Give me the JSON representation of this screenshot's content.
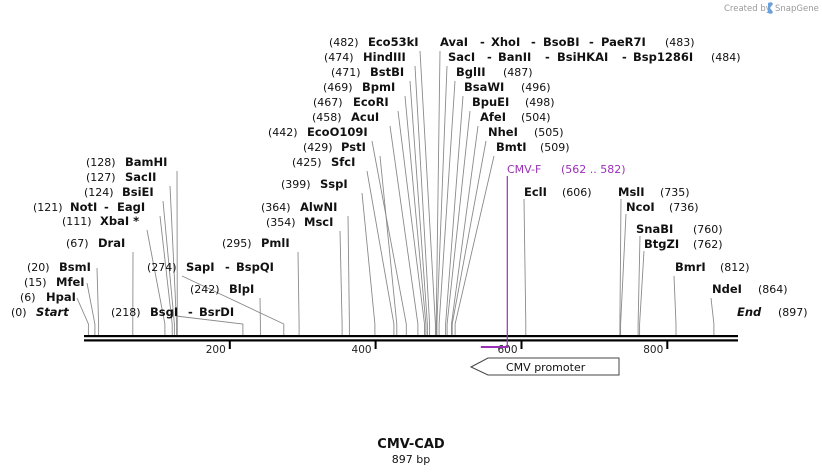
{
  "brand": {
    "created_by": "Created by",
    "app_name": "SnapGene",
    "logo_icon": "snapgene-logo-icon"
  },
  "map": {
    "name": "CMV-CAD",
    "length_label": "897 bp",
    "length_bp": 897,
    "tick_labels": [
      "200",
      "400",
      "600",
      "800"
    ],
    "tick_values": [
      200,
      400,
      600,
      800
    ],
    "backbone_color": "#000000",
    "cut_line_color": "#8a8a8a"
  },
  "endpoints": [
    {
      "id": "start",
      "name": "Start",
      "pos_label": "(0)",
      "pos": 0
    },
    {
      "id": "end",
      "name": "End",
      "pos_label": "(897)",
      "pos": 897
    }
  ],
  "sites": [
    {
      "id": "hpai",
      "names": [
        "HpaI"
      ],
      "pos_label": "(6)",
      "pos": 6
    },
    {
      "id": "mfei",
      "names": [
        "MfeI"
      ],
      "pos_label": "(15)",
      "pos": 15
    },
    {
      "id": "bsmi",
      "names": [
        "BsmI"
      ],
      "pos_label": "(20)",
      "pos": 20
    },
    {
      "id": "drai",
      "names": [
        "DraI"
      ],
      "pos_label": "(67)",
      "pos": 67
    },
    {
      "id": "xbai",
      "names": [
        "XbaI *"
      ],
      "pos_label": "(111)",
      "pos": 111
    },
    {
      "id": "noti-eagi",
      "names": [
        "NotI",
        "EagI"
      ],
      "pos_label": "(121)",
      "pos": 121
    },
    {
      "id": "bsiei",
      "names": [
        "BsiEI"
      ],
      "pos_label": "(124)",
      "pos": 124
    },
    {
      "id": "sacii",
      "names": [
        "SacII"
      ],
      "pos_label": "(127)",
      "pos": 127
    },
    {
      "id": "bamhi",
      "names": [
        "BamHI"
      ],
      "pos_label": "(128)",
      "pos": 128
    },
    {
      "id": "bsgi-bsrdi",
      "names": [
        "BsgI",
        "BsrDI"
      ],
      "pos_label": "(218)",
      "pos": 218
    },
    {
      "id": "sapi-bspqi",
      "names": [
        "SapI",
        "BspQI"
      ],
      "pos_label": "(274)",
      "pos": 274
    },
    {
      "id": "blpi",
      "names": [
        "BlpI"
      ],
      "pos_label": "(242)",
      "pos": 242
    },
    {
      "id": "pmli",
      "names": [
        "PmlI"
      ],
      "pos_label": "(295)",
      "pos": 295
    },
    {
      "id": "msci",
      "names": [
        "MscI"
      ],
      "pos_label": "(354)",
      "pos": 354
    },
    {
      "id": "alwni",
      "names": [
        "AlwNI"
      ],
      "pos_label": "(364)",
      "pos": 364
    },
    {
      "id": "sspi",
      "names": [
        "SspI"
      ],
      "pos_label": "(399)",
      "pos": 399
    },
    {
      "id": "sfci",
      "names": [
        "SfcI"
      ],
      "pos_label": "(425)",
      "pos": 425
    },
    {
      "id": "psti",
      "names": [
        "PstI"
      ],
      "pos_label": "(429)",
      "pos": 429
    },
    {
      "id": "ecoo109i",
      "names": [
        "EcoO109I"
      ],
      "pos_label": "(442)",
      "pos": 442
    },
    {
      "id": "acui",
      "names": [
        "AcuI"
      ],
      "pos_label": "(458)",
      "pos": 458
    },
    {
      "id": "ecori",
      "names": [
        "EcoRI"
      ],
      "pos_label": "(467)",
      "pos": 467
    },
    {
      "id": "bpmi",
      "names": [
        "BpmI"
      ],
      "pos_label": "(469)",
      "pos": 469
    },
    {
      "id": "bstbi",
      "names": [
        "BstBI"
      ],
      "pos_label": "(471)",
      "pos": 471
    },
    {
      "id": "hindiii",
      "names": [
        "HindIII"
      ],
      "pos_label": "(474)",
      "pos": 474
    },
    {
      "id": "eco53ki",
      "names": [
        "Eco53kI"
      ],
      "pos_label": "(482)",
      "pos": 482
    },
    {
      "id": "avai-group",
      "names": [
        "AvaI",
        "XhoI",
        "BsoBI",
        "PaeR7I"
      ],
      "pos_label": "(483)",
      "pos": 483
    },
    {
      "id": "saci-group",
      "names": [
        "SacI",
        "BanII",
        "BsiHKAI",
        "Bsp1286I"
      ],
      "pos_label": "(484)",
      "pos": 484
    },
    {
      "id": "bglii",
      "names": [
        "BglII"
      ],
      "pos_label": "(487)",
      "pos": 487
    },
    {
      "id": "bsawi",
      "names": [
        "BsaWI"
      ],
      "pos_label": "(496)",
      "pos": 496
    },
    {
      "id": "bpuei",
      "names": [
        "BpuEI"
      ],
      "pos_label": "(498)",
      "pos": 498
    },
    {
      "id": "afei",
      "names": [
        "AfeI"
      ],
      "pos_label": "(504)",
      "pos": 504
    },
    {
      "id": "nhei",
      "names": [
        "NheI"
      ],
      "pos_label": "(505)",
      "pos": 505
    },
    {
      "id": "bmti",
      "names": [
        "BmtI"
      ],
      "pos_label": "(509)",
      "pos": 509
    },
    {
      "id": "ecli",
      "names": [
        "EclI"
      ],
      "pos_label": "(606)",
      "pos": 606
    },
    {
      "id": "msli",
      "names": [
        "MslI"
      ],
      "pos_label": "(735)",
      "pos": 735
    },
    {
      "id": "ncoi",
      "names": [
        "NcoI"
      ],
      "pos_label": "(736)",
      "pos": 736
    },
    {
      "id": "snabi",
      "names": [
        "SnaBI"
      ],
      "pos_label": "(760)",
      "pos": 760
    },
    {
      "id": "btgzi",
      "names": [
        "BtgZI"
      ],
      "pos_label": "(762)",
      "pos": 762
    },
    {
      "id": "bmri",
      "names": [
        "BmrI"
      ],
      "pos_label": "(812)",
      "pos": 812
    },
    {
      "id": "ndei",
      "names": [
        "NdeI"
      ],
      "pos_label": "(864)",
      "pos": 864
    }
  ],
  "primer": {
    "name": "CMV-F",
    "range_label": "(562 .. 582)",
    "start": 562,
    "end": 582,
    "color": "#9b30b8"
  },
  "feature": {
    "name": "CMV promoter",
    "direction": "reverse"
  }
}
